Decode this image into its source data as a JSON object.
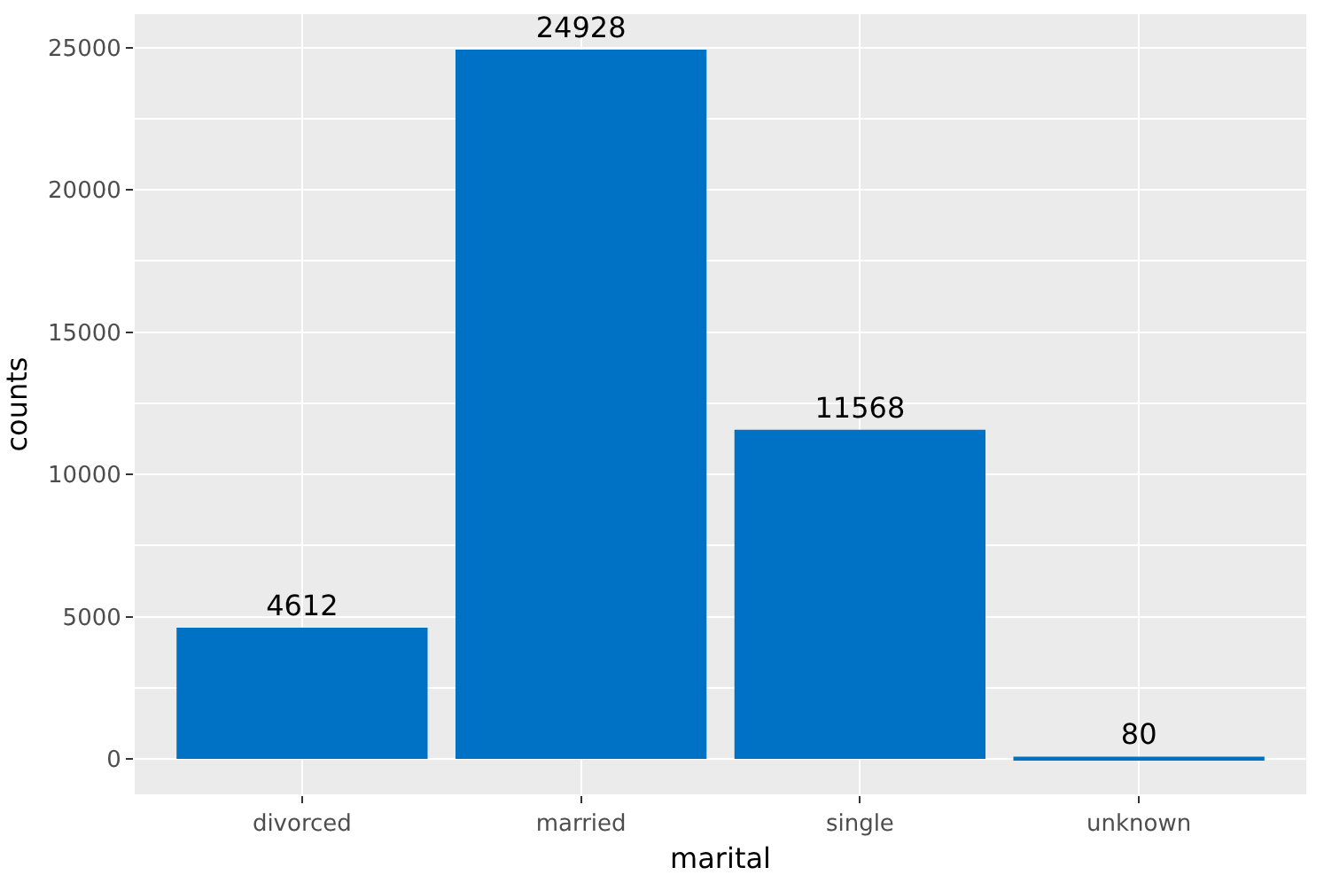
{
  "chart_data": {
    "type": "bar",
    "xlabel": "marital",
    "ylabel": "counts",
    "categories": [
      "divorced",
      "married",
      "single",
      "unknown"
    ],
    "values": [
      4612,
      24928,
      11568,
      80
    ],
    "color": "#0072c6",
    "ylim": [
      -1246,
      26174
    ],
    "yticks": [
      0,
      5000,
      10000,
      15000,
      20000,
      25000
    ],
    "grid": true,
    "data_labels": true
  }
}
